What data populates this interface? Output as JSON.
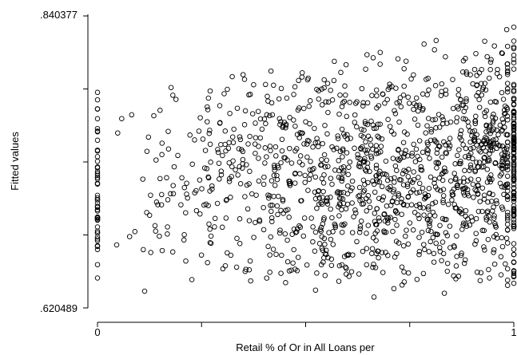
{
  "chart_data": {
    "type": "scatter",
    "title": "",
    "xlabel": "Retail % of Or in All Loans per",
    "ylabel": "Fitted values",
    "x_tick_labels": [
      "0",
      "1"
    ],
    "y_tick_labels": [
      ".620489",
      ".840377"
    ],
    "xlim": [
      0,
      1
    ],
    "ylim": [
      0.620489,
      0.840377
    ],
    "x_minor_ticks": [
      0,
      0.25,
      0.5,
      0.75,
      1
    ],
    "y_minor_ticks": [
      0.620489,
      0.675461,
      0.730433,
      0.785405,
      0.840377
    ],
    "grid": false,
    "legend": "none",
    "marker": "hollow-circle",
    "marker_color": "#000000",
    "n_points": 1500,
    "x_mass_at_bounds": {
      "x0_fraction": 0.03,
      "x1_fraction": 0.09
    },
    "density": "increasing-with-x"
  }
}
